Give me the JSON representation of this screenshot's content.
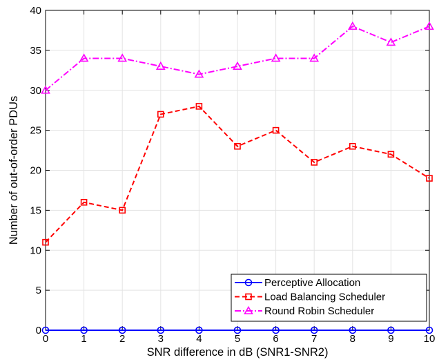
{
  "chart_data": {
    "type": "line",
    "title": "",
    "xlabel": "SNR difference in dB (SNR1-SNR2)",
    "ylabel": "Number of out-of-order PDUs",
    "x": [
      0,
      1,
      2,
      3,
      4,
      5,
      6,
      7,
      8,
      9,
      10
    ],
    "xlim": [
      0,
      10
    ],
    "ylim": [
      0,
      40
    ],
    "xticks": [
      0,
      1,
      2,
      3,
      4,
      5,
      6,
      7,
      8,
      9,
      10
    ],
    "yticks": [
      0,
      5,
      10,
      15,
      20,
      25,
      30,
      35,
      40
    ],
    "grid": true,
    "legend_position": "bottom-right",
    "series": [
      {
        "name": "Perceptive Allocation",
        "values": [
          0,
          0,
          0,
          0,
          0,
          0,
          0,
          0,
          0,
          0,
          0
        ],
        "color": "#0000ff",
        "line_style": "solid",
        "marker": "circle"
      },
      {
        "name": "Load Balancing Scheduler",
        "values": [
          11,
          16,
          15,
          27,
          28,
          23,
          25,
          21,
          23,
          22,
          19
        ],
        "color": "#ff0000",
        "line_style": "dashed",
        "marker": "square"
      },
      {
        "name": "Round Robin Scheduler",
        "values": [
          30,
          34,
          34,
          33,
          32,
          33,
          34,
          34,
          38,
          36,
          38
        ],
        "color": "#ff00ff",
        "line_style": "dash-dot",
        "marker": "triangle"
      }
    ]
  }
}
